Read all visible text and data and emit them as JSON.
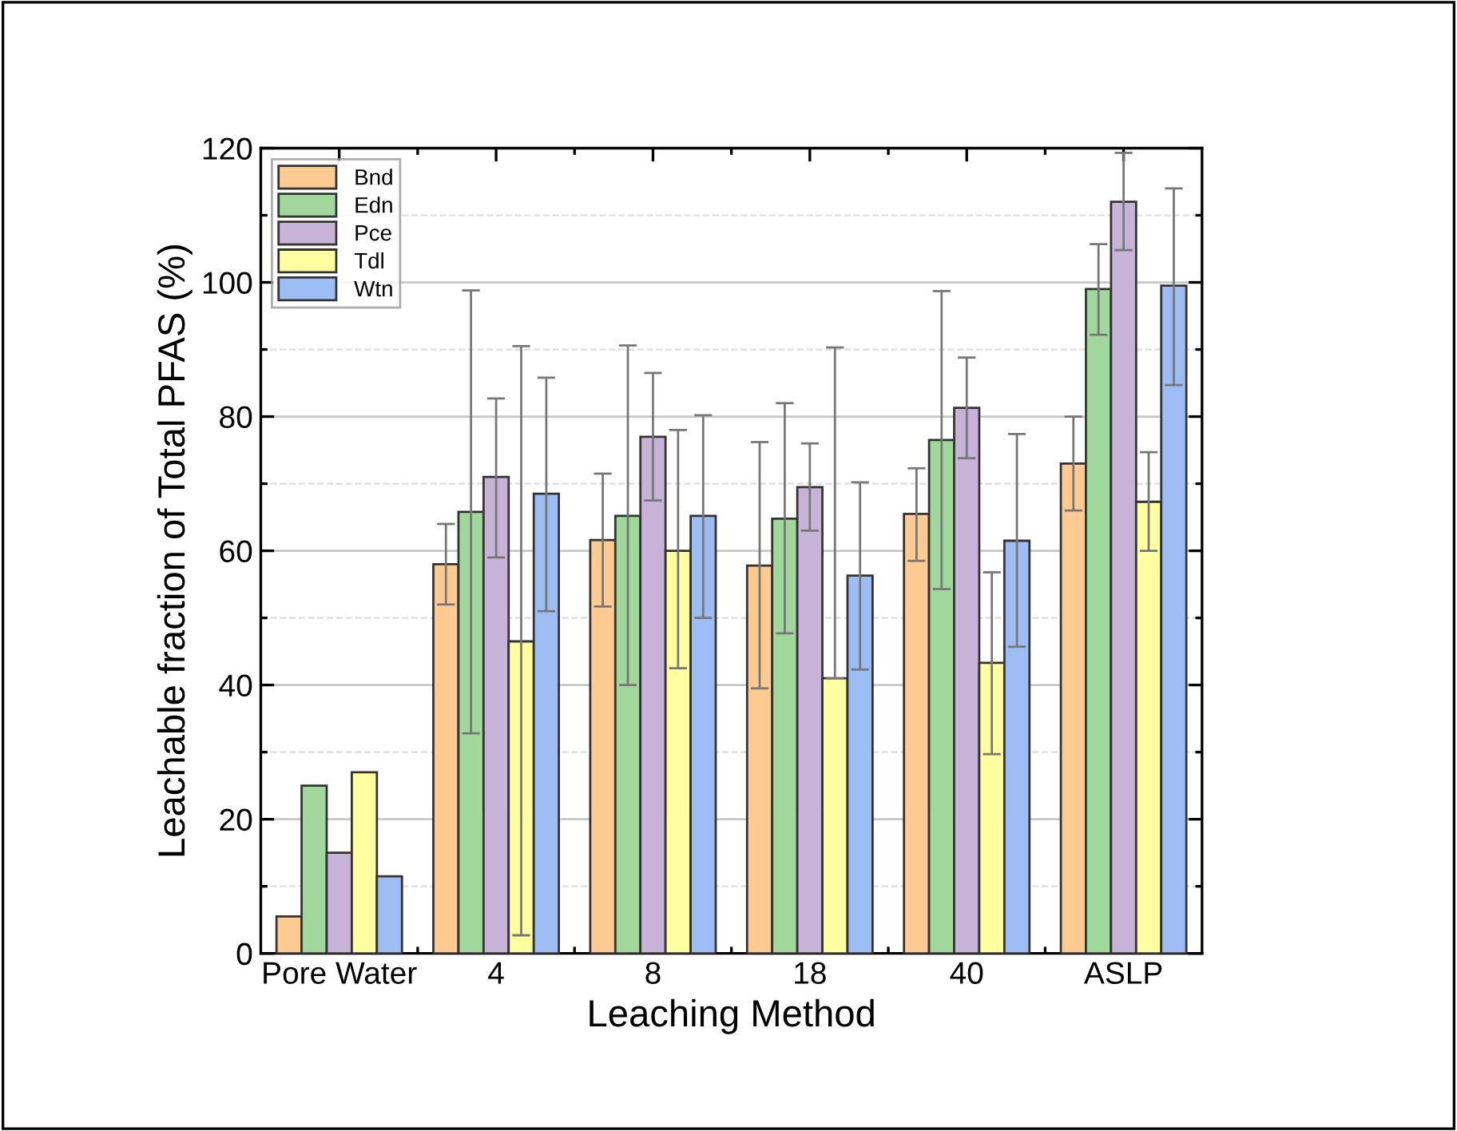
{
  "chart_data": {
    "type": "bar",
    "xlabel": "Leaching Method",
    "ylabel": "Leachable fraction of Total PFAS (%)",
    "categories": [
      "Pore Water",
      "4",
      "8",
      "18",
      "40",
      "ASLP"
    ],
    "series": [
      {
        "name": "Bnd",
        "color": "#fdcb92",
        "values": [
          5.5,
          58,
          61.6,
          57.8,
          65.5,
          73
        ],
        "errors": [
          null,
          [
            52,
            64
          ],
          [
            51.7,
            71.5
          ],
          [
            39.5,
            76.2
          ],
          [
            58.5,
            72.3
          ],
          [
            66,
            80
          ]
        ]
      },
      {
        "name": "Edn",
        "color": "#9fd89a",
        "values": [
          25,
          65.8,
          65.2,
          64.8,
          76.5,
          99
        ],
        "errors": [
          null,
          [
            32.8,
            98.8
          ],
          [
            40,
            90.6
          ],
          [
            47.7,
            82
          ],
          [
            54.3,
            98.7
          ],
          [
            92.2,
            105.7
          ]
        ]
      },
      {
        "name": "Pce",
        "color": "#c7b3d8",
        "values": [
          15,
          71,
          77,
          69.5,
          81.3,
          112
        ],
        "errors": [
          null,
          [
            59,
            82.7
          ],
          [
            67.5,
            86.5
          ],
          [
            63,
            76
          ],
          [
            73.8,
            88.8
          ],
          [
            104.8,
            119.3
          ]
        ]
      },
      {
        "name": "Tdl",
        "color": "#ffff9f",
        "values": [
          27,
          46.5,
          60,
          41,
          43.3,
          67.3
        ],
        "errors": [
          null,
          [
            2.7,
            90.5
          ],
          [
            42.5,
            78
          ],
          [
            41,
            90.3
          ],
          [
            29.7,
            56.8
          ],
          [
            60,
            74.7
          ]
        ]
      },
      {
        "name": "Wtn",
        "color": "#9dbcf3",
        "values": [
          11.5,
          68.5,
          65.2,
          56.3,
          61.5,
          99.5
        ],
        "errors": [
          null,
          [
            51,
            85.8
          ],
          [
            50,
            80.2
          ],
          [
            42.3,
            70.2
          ],
          [
            45.7,
            77.4
          ],
          [
            84.7,
            114
          ]
        ]
      }
    ],
    "ylim": [
      0,
      120
    ],
    "yticks": [
      0,
      20,
      40,
      60,
      80,
      100,
      120
    ],
    "grid": "y",
    "legend": "top left"
  }
}
